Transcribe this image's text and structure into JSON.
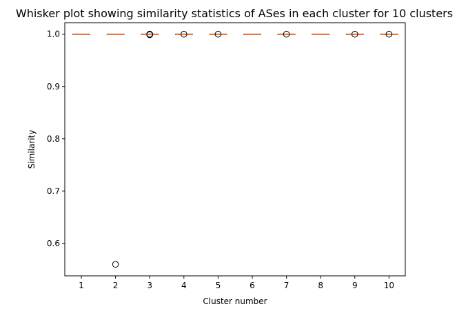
{
  "chart_data": {
    "type": "box",
    "title": "Whisker plot showing similarity statistics of ASes in each cluster for 10 clusters",
    "xlabel": "Cluster number",
    "ylabel": "Similarity",
    "ylim": [
      0.538,
      1.022
    ],
    "yticks": [
      "0.6",
      "0.7",
      "0.8",
      "0.9",
      "1.0"
    ],
    "ytick_values": [
      0.6,
      0.7,
      0.8,
      0.9,
      1.0
    ],
    "categories": [
      "1",
      "2",
      "3",
      "4",
      "5",
      "6",
      "7",
      "8",
      "9",
      "10"
    ],
    "boxes": [
      {
        "median": 1.0,
        "q1": 1.0,
        "q3": 1.0,
        "whisker_low": 1.0,
        "whisker_high": 1.0,
        "outliers": []
      },
      {
        "median": 1.0,
        "q1": 1.0,
        "q3": 1.0,
        "whisker_low": 1.0,
        "whisker_high": 1.0,
        "outliers": [
          0.56
        ]
      },
      {
        "median": 1.0,
        "q1": 1.0,
        "q3": 1.0,
        "whisker_low": 1.0,
        "whisker_high": 1.0,
        "outliers": [
          0.999,
          1.0,
          1.0
        ]
      },
      {
        "median": 1.0,
        "q1": 1.0,
        "q3": 1.0,
        "whisker_low": 1.0,
        "whisker_high": 1.0,
        "outliers": [
          1.0
        ]
      },
      {
        "median": 1.0,
        "q1": 1.0,
        "q3": 1.0,
        "whisker_low": 1.0,
        "whisker_high": 1.0,
        "outliers": [
          1.0
        ]
      },
      {
        "median": 1.0,
        "q1": 1.0,
        "q3": 1.0,
        "whisker_low": 1.0,
        "whisker_high": 1.0,
        "outliers": []
      },
      {
        "median": 1.0,
        "q1": 1.0,
        "q3": 1.0,
        "whisker_low": 1.0,
        "whisker_high": 1.0,
        "outliers": [
          1.0
        ]
      },
      {
        "median": 1.0,
        "q1": 1.0,
        "q3": 1.0,
        "whisker_low": 1.0,
        "whisker_high": 1.0,
        "outliers": []
      },
      {
        "median": 1.0,
        "q1": 1.0,
        "q3": 1.0,
        "whisker_low": 1.0,
        "whisker_high": 1.0,
        "outliers": [
          1.0
        ]
      },
      {
        "median": 1.0,
        "q1": 1.0,
        "q3": 1.0,
        "whisker_low": 1.0,
        "whisker_high": 1.0,
        "outliers": [
          1.0
        ]
      }
    ],
    "colors": {
      "median": "#dd8452",
      "box": "#000000",
      "outlier": "#000000"
    },
    "grid": false,
    "legend": "none"
  }
}
